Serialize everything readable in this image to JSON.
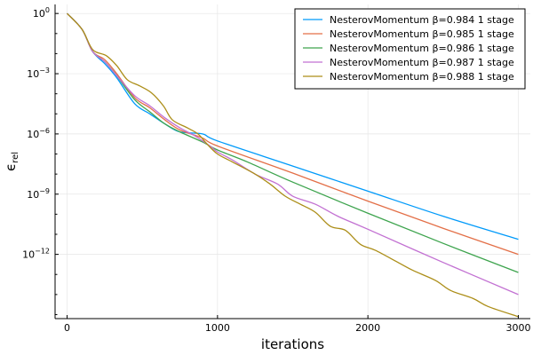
{
  "chart_data": {
    "type": "line",
    "title": "",
    "xlabel": "iterations",
    "ylabel": "ϵrel",
    "ylabel_main": "ϵ",
    "ylabel_sub": "rel",
    "yscale": "log",
    "xlim": [
      -80,
      3080
    ],
    "ylim_exp": [
      -15.2,
      0.45
    ],
    "x_ticks": [
      0,
      1000,
      2000,
      3000
    ],
    "x_tick_labels": [
      "0",
      "1000",
      "2000",
      "3000"
    ],
    "y_ticks_exp": [
      0,
      -3,
      -6,
      -9,
      -12
    ],
    "y_tick_labels": [
      {
        "base": "10",
        "exp": "0"
      },
      {
        "base": "10",
        "exp": "−3"
      },
      {
        "base": "10",
        "exp": "−6"
      },
      {
        "base": "10",
        "exp": "−9"
      },
      {
        "base": "10",
        "exp": "−12"
      }
    ],
    "grid": true,
    "legend_position": "top-right",
    "series": [
      {
        "name": "NesterovMomentum β=0.984 1 stage",
        "color": "#009AFA",
        "points": [
          [
            0,
            0
          ],
          [
            100,
            -0.8
          ],
          [
            170,
            -1.9
          ],
          [
            250,
            -2.5
          ],
          [
            330,
            -3.2
          ],
          [
            450,
            -4.5
          ],
          [
            550,
            -5.0
          ],
          [
            650,
            -5.5
          ],
          [
            750,
            -5.9
          ],
          [
            900,
            -6.0
          ],
          [
            1000,
            -6.35
          ],
          [
            1500,
            -7.6
          ],
          [
            2000,
            -8.85
          ],
          [
            2500,
            -10.1
          ],
          [
            3000,
            -11.25
          ]
        ]
      },
      {
        "name": "NesterovMomentum β=0.985 1 stage",
        "color": "#E36F47",
        "points": [
          [
            0,
            0
          ],
          [
            100,
            -0.8
          ],
          [
            170,
            -1.9
          ],
          [
            250,
            -2.3
          ],
          [
            330,
            -3.0
          ],
          [
            450,
            -4.2
          ],
          [
            550,
            -4.7
          ],
          [
            650,
            -5.3
          ],
          [
            750,
            -5.8
          ],
          [
            900,
            -6.2
          ],
          [
            1000,
            -6.6
          ],
          [
            1500,
            -7.95
          ],
          [
            2000,
            -9.35
          ],
          [
            2500,
            -10.7
          ],
          [
            3000,
            -12.0
          ]
        ]
      },
      {
        "name": "NesterovMomentum β=0.986 1 stage",
        "color": "#3EA44E",
        "points": [
          [
            0,
            0
          ],
          [
            100,
            -0.8
          ],
          [
            170,
            -1.9
          ],
          [
            250,
            -2.4
          ],
          [
            330,
            -3.1
          ],
          [
            450,
            -4.3
          ],
          [
            550,
            -4.9
          ],
          [
            650,
            -5.5
          ],
          [
            750,
            -5.9
          ],
          [
            900,
            -6.4
          ],
          [
            1000,
            -6.8
          ],
          [
            1200,
            -7.4
          ],
          [
            1500,
            -8.4
          ],
          [
            2000,
            -9.95
          ],
          [
            2500,
            -11.45
          ],
          [
            3000,
            -12.9
          ]
        ]
      },
      {
        "name": "NesterovMomentum β=0.987 1 stage",
        "color": "#C271D2",
        "points": [
          [
            0,
            0
          ],
          [
            100,
            -0.8
          ],
          [
            170,
            -1.9
          ],
          [
            250,
            -2.4
          ],
          [
            330,
            -3.1
          ],
          [
            450,
            -4.1
          ],
          [
            550,
            -4.6
          ],
          [
            650,
            -5.2
          ],
          [
            750,
            -5.7
          ],
          [
            850,
            -6.1
          ],
          [
            950,
            -6.6
          ],
          [
            1000,
            -6.9
          ],
          [
            1100,
            -7.3
          ],
          [
            1250,
            -8.0
          ],
          [
            1400,
            -8.5
          ],
          [
            1500,
            -9.1
          ],
          [
            1650,
            -9.5
          ],
          [
            1800,
            -10.1
          ],
          [
            2000,
            -10.75
          ],
          [
            2500,
            -12.4
          ],
          [
            3000,
            -14.0
          ]
        ]
      },
      {
        "name": "NesterovMomentum β=0.988 1 stage",
        "color": "#AC8E18",
        "points": [
          [
            0,
            0
          ],
          [
            100,
            -0.8
          ],
          [
            170,
            -1.8
          ],
          [
            260,
            -2.1
          ],
          [
            330,
            -2.6
          ],
          [
            400,
            -3.3
          ],
          [
            480,
            -3.6
          ],
          [
            560,
            -3.95
          ],
          [
            640,
            -4.6
          ],
          [
            700,
            -5.3
          ],
          [
            800,
            -5.7
          ],
          [
            870,
            -6.0
          ],
          [
            930,
            -6.5
          ],
          [
            1000,
            -7.0
          ],
          [
            1100,
            -7.4
          ],
          [
            1250,
            -8.0
          ],
          [
            1350,
            -8.5
          ],
          [
            1450,
            -9.1
          ],
          [
            1550,
            -9.5
          ],
          [
            1650,
            -9.9
          ],
          [
            1750,
            -10.6
          ],
          [
            1850,
            -10.8
          ],
          [
            1950,
            -11.5
          ],
          [
            2050,
            -11.8
          ],
          [
            2200,
            -12.4
          ],
          [
            2300,
            -12.8
          ],
          [
            2450,
            -13.3
          ],
          [
            2550,
            -13.8
          ],
          [
            2700,
            -14.2
          ],
          [
            2800,
            -14.6
          ],
          [
            3000,
            -15.1
          ]
        ]
      }
    ]
  }
}
